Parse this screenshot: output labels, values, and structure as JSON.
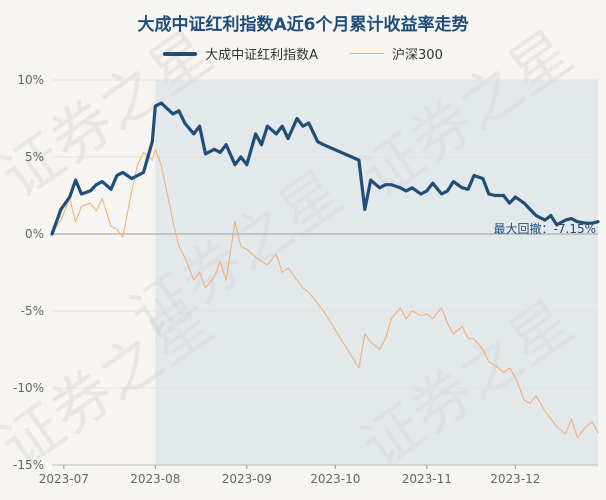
{
  "chart_data": {
    "type": "line",
    "title": "大成中证红利指数A近6个月累计收益率走势",
    "xlabel": "",
    "ylabel": "",
    "ylim": [
      -15,
      10
    ],
    "y_ticks": [
      "10%",
      "5%",
      "0%",
      "-5%",
      "-10%",
      "-15%"
    ],
    "x_ticks": [
      "2023-07",
      "2023-08",
      "2023-09",
      "2023-10",
      "2023-11",
      "2023-12"
    ],
    "grid": "horizontal",
    "legend": "top-center",
    "annotation": "最大回撤：-7.15%",
    "drawdown_period": [
      "2023-08-01",
      "2023-12-29"
    ],
    "watermark": "证券之星",
    "series": [
      {
        "name": "大成中证红利指数A",
        "color": "#1f4e79",
        "x": [
          "2023-06-27",
          "2023-06-30",
          "2023-07-03",
          "2023-07-05",
          "2023-07-07",
          "2023-07-10",
          "2023-07-12",
          "2023-07-14",
          "2023-07-17",
          "2023-07-19",
          "2023-07-21",
          "2023-07-24",
          "2023-07-26",
          "2023-07-28",
          "2023-07-31",
          "2023-08-01",
          "2023-08-03",
          "2023-08-07",
          "2023-08-09",
          "2023-08-11",
          "2023-08-14",
          "2023-08-16",
          "2023-08-18",
          "2023-08-21",
          "2023-08-23",
          "2023-08-25",
          "2023-08-28",
          "2023-08-30",
          "2023-09-01",
          "2023-09-04",
          "2023-09-06",
          "2023-09-08",
          "2023-09-11",
          "2023-09-13",
          "2023-09-15",
          "2023-09-18",
          "2023-09-20",
          "2023-09-22",
          "2023-09-25",
          "2023-09-27",
          "2023-10-09",
          "2023-10-11",
          "2023-10-13",
          "2023-10-16",
          "2023-10-18",
          "2023-10-20",
          "2023-10-23",
          "2023-10-25",
          "2023-10-27",
          "2023-10-30",
          "2023-11-01",
          "2023-11-03",
          "2023-11-06",
          "2023-11-08",
          "2023-11-10",
          "2023-11-13",
          "2023-11-15",
          "2023-11-17",
          "2023-11-20",
          "2023-11-22",
          "2023-11-24",
          "2023-11-27",
          "2023-11-29",
          "2023-12-01",
          "2023-12-04",
          "2023-12-06",
          "2023-12-08",
          "2023-12-11",
          "2023-12-13",
          "2023-12-15",
          "2023-12-18",
          "2023-12-20",
          "2023-12-22",
          "2023-12-25",
          "2023-12-27",
          "2023-12-29"
        ],
        "values": [
          0.0,
          1.6,
          2.4,
          3.5,
          2.6,
          2.8,
          3.2,
          3.4,
          2.9,
          3.8,
          4.0,
          3.6,
          3.8,
          4.0,
          6.0,
          8.3,
          8.5,
          7.8,
          8.0,
          7.2,
          6.5,
          7.0,
          5.2,
          5.5,
          5.3,
          5.8,
          4.5,
          5.0,
          4.5,
          6.5,
          5.8,
          7.0,
          6.5,
          7.0,
          6.2,
          7.5,
          7.0,
          7.2,
          6.0,
          5.8,
          4.8,
          1.6,
          3.5,
          3.0,
          3.2,
          3.2,
          3.0,
          2.8,
          3.0,
          2.6,
          2.8,
          3.3,
          2.6,
          2.8,
          3.4,
          3.0,
          2.9,
          3.8,
          3.6,
          2.6,
          2.5,
          2.5,
          2.0,
          2.4,
          2.0,
          1.6,
          1.2,
          0.9,
          1.2,
          0.6,
          0.9,
          1.0,
          0.8,
          0.7,
          0.7,
          0.8
        ]
      },
      {
        "name": "沪深300",
        "color": "#f0b07a",
        "x": [
          "2023-06-27",
          "2023-06-30",
          "2023-07-03",
          "2023-07-05",
          "2023-07-07",
          "2023-07-10",
          "2023-07-12",
          "2023-07-14",
          "2023-07-17",
          "2023-07-19",
          "2023-07-21",
          "2023-07-24",
          "2023-07-26",
          "2023-07-28",
          "2023-07-31",
          "2023-08-01",
          "2023-08-03",
          "2023-08-07",
          "2023-08-09",
          "2023-08-11",
          "2023-08-14",
          "2023-08-16",
          "2023-08-18",
          "2023-08-21",
          "2023-08-23",
          "2023-08-25",
          "2023-08-28",
          "2023-08-30",
          "2023-09-01",
          "2023-09-04",
          "2023-09-06",
          "2023-09-08",
          "2023-09-11",
          "2023-09-13",
          "2023-09-15",
          "2023-09-18",
          "2023-09-20",
          "2023-09-22",
          "2023-09-25",
          "2023-09-27",
          "2023-10-09",
          "2023-10-11",
          "2023-10-13",
          "2023-10-16",
          "2023-10-18",
          "2023-10-20",
          "2023-10-23",
          "2023-10-25",
          "2023-10-27",
          "2023-10-30",
          "2023-11-01",
          "2023-11-03",
          "2023-11-06",
          "2023-11-08",
          "2023-11-10",
          "2023-11-13",
          "2023-11-15",
          "2023-11-17",
          "2023-11-20",
          "2023-11-22",
          "2023-11-24",
          "2023-11-27",
          "2023-11-29",
          "2023-12-01",
          "2023-12-04",
          "2023-12-06",
          "2023-12-08",
          "2023-12-11",
          "2023-12-13",
          "2023-12-15",
          "2023-12-18",
          "2023-12-20",
          "2023-12-22",
          "2023-12-25",
          "2023-12-27",
          "2023-12-29"
        ],
        "values": [
          0.0,
          0.9,
          2.3,
          0.8,
          1.8,
          2.0,
          1.5,
          2.3,
          0.5,
          0.3,
          -0.2,
          2.8,
          4.5,
          5.3,
          4.8,
          5.5,
          4.5,
          0.8,
          -0.8,
          -1.5,
          -3.0,
          -2.5,
          -3.5,
          -2.8,
          -1.8,
          -3.0,
          0.8,
          -0.8,
          -1.0,
          -1.5,
          -1.8,
          -2.0,
          -1.3,
          -2.5,
          -2.2,
          -3.0,
          -3.5,
          -3.8,
          -4.5,
          -5.0,
          -8.7,
          -6.5,
          -7.0,
          -7.5,
          -6.8,
          -5.5,
          -4.8,
          -5.5,
          -5.0,
          -5.3,
          -5.2,
          -5.5,
          -4.8,
          -5.8,
          -6.5,
          -6.0,
          -6.8,
          -6.8,
          -7.5,
          -8.3,
          -8.5,
          -9.0,
          -8.7,
          -9.3,
          -10.8,
          -11.0,
          -10.5,
          -11.5,
          -12.0,
          -12.5,
          -13.0,
          -12.0,
          -13.2,
          -12.5,
          -12.2,
          -12.9
        ]
      }
    ]
  }
}
